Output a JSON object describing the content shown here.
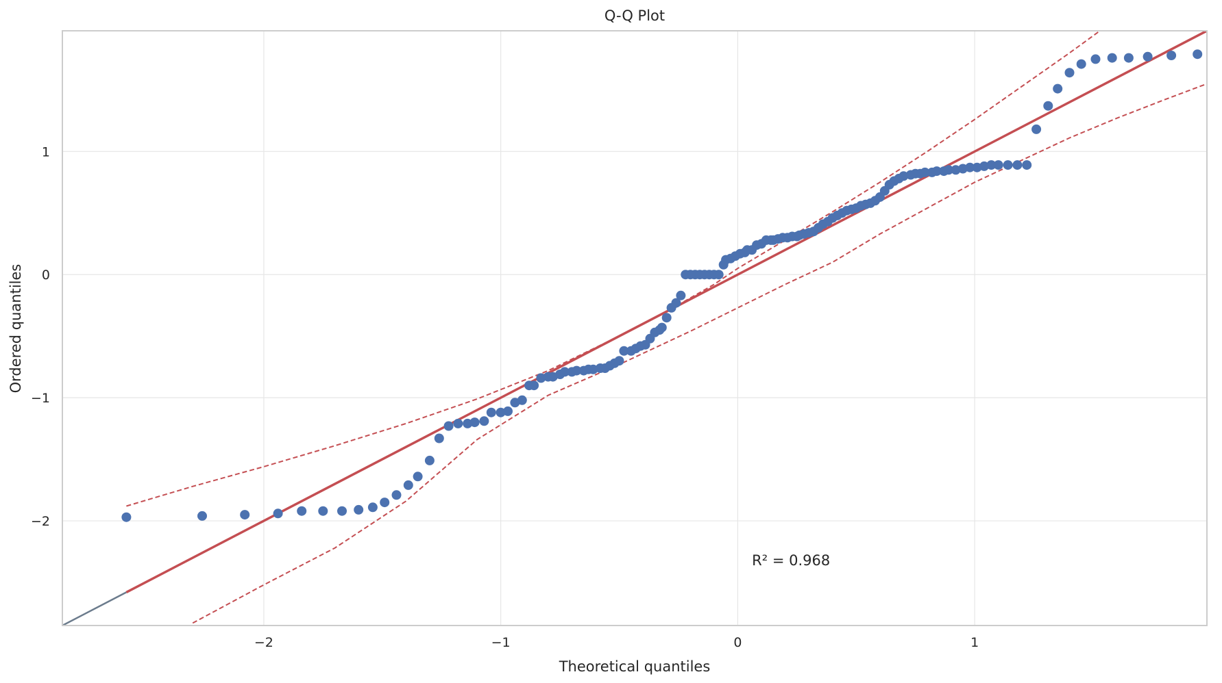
{
  "chart_data": {
    "type": "scatter",
    "title": "Q-Q Plot",
    "xlabel": "Theoretical quantiles",
    "ylabel": "Ordered quantiles",
    "xlim": [
      -2.85,
      1.98
    ],
    "ylim": [
      -2.85,
      1.98
    ],
    "xticks": [
      -2,
      -1,
      0,
      1
    ],
    "yticks": [
      -2,
      -1,
      0,
      1
    ],
    "xtick_labels": [
      "−2",
      "−1",
      "0",
      "1"
    ],
    "ytick_labels": [
      "−2",
      "−1",
      "0",
      "1"
    ],
    "grid": true,
    "annotation": {
      "text": "R² = 0.968",
      "x": 0.06,
      "y": -2.36
    },
    "colors": {
      "points": "#4c72b0",
      "fit_line": "#c44e52",
      "confidence_band": "#c44e52",
      "diagonal": "#6b7b8c",
      "grid": "#e6e6e6",
      "spine": "#cccccc"
    },
    "fit_line": {
      "x": [
        -2.58,
        1.98
      ],
      "y": [
        -2.58,
        1.98
      ]
    },
    "diagonal_line": {
      "x": [
        -2.85,
        -2.58
      ],
      "y": [
        -2.85,
        -2.58
      ]
    },
    "confidence_upper": {
      "x": [
        -2.58,
        -2.3,
        -2.0,
        -1.7,
        -1.4,
        -1.1,
        -0.8,
        -0.5,
        -0.3,
        -0.1,
        0.0,
        0.2,
        0.4,
        0.6,
        0.8,
        1.0,
        1.2,
        1.4,
        1.6
      ],
      "y": [
        -1.88,
        -1.72,
        -1.56,
        -1.39,
        -1.21,
        -1.01,
        -0.78,
        -0.5,
        -0.3,
        -0.08,
        0.05,
        0.28,
        0.51,
        0.75,
        1.0,
        1.26,
        1.53,
        1.8,
        2.08
      ]
    },
    "confidence_lower": {
      "x": [
        -2.3,
        -2.0,
        -1.7,
        -1.4,
        -1.1,
        -0.8,
        -0.5,
        -0.2,
        0.0,
        0.2,
        0.4,
        0.6,
        0.8,
        1.0,
        1.2,
        1.4,
        1.6,
        1.8,
        1.98
      ],
      "y": [
        -2.83,
        -2.52,
        -2.22,
        -1.84,
        -1.34,
        -0.98,
        -0.73,
        -0.46,
        -0.27,
        -0.08,
        0.1,
        0.33,
        0.54,
        0.75,
        0.93,
        1.11,
        1.27,
        1.42,
        1.55
      ]
    },
    "series": [
      {
        "x": [
          -2.58,
          -2.26,
          -2.08,
          -1.94,
          -1.84,
          -1.75,
          -1.67,
          -1.6,
          -1.54,
          -1.49,
          -1.44,
          -1.39,
          -1.35,
          -1.3,
          -1.26,
          -1.22,
          -1.18,
          -1.14,
          -1.11,
          -1.07,
          -1.04,
          -1.0,
          -0.97,
          -0.94,
          -0.91,
          -0.88,
          -0.86,
          -0.83,
          -0.8,
          -0.78,
          -0.75,
          -0.73,
          -0.7,
          -0.68,
          -0.65,
          -0.63,
          -0.61,
          -0.58,
          -0.56,
          -0.54,
          -0.52,
          -0.5,
          -0.48,
          -0.45,
          -0.43,
          -0.41,
          -0.39,
          -0.37,
          -0.35,
          -0.33,
          -0.32,
          -0.3,
          -0.28,
          -0.26,
          -0.24,
          -0.22,
          -0.2,
          -0.18,
          -0.16,
          -0.14,
          -0.12,
          -0.1,
          -0.08,
          -0.06,
          -0.05,
          -0.03,
          -0.01,
          0.01,
          0.03,
          0.04,
          0.06,
          0.08,
          0.1,
          0.12,
          0.14,
          0.15,
          0.17,
          0.19,
          0.21,
          0.23,
          0.25,
          0.26,
          0.28,
          0.3,
          0.32,
          0.34,
          0.36,
          0.38,
          0.4,
          0.42,
          0.44,
          0.46,
          0.48,
          0.5,
          0.52,
          0.54,
          0.56,
          0.58,
          0.6,
          0.62,
          0.64,
          0.66,
          0.68,
          0.7,
          0.73,
          0.75,
          0.77,
          0.79,
          0.82,
          0.84,
          0.87,
          0.89,
          0.92,
          0.95,
          0.98,
          1.01,
          1.04,
          1.07,
          1.1,
          1.14,
          1.18,
          1.22,
          1.26,
          1.31,
          1.35,
          1.4,
          1.45,
          1.51,
          1.58,
          1.65,
          1.73,
          1.83,
          1.94
        ],
        "y": [
          -1.97,
          -1.96,
          -1.95,
          -1.94,
          -1.92,
          -1.92,
          -1.92,
          -1.91,
          -1.89,
          -1.85,
          -1.79,
          -1.71,
          -1.64,
          -1.51,
          -1.33,
          -1.23,
          -1.21,
          -1.21,
          -1.2,
          -1.19,
          -1.12,
          -1.12,
          -1.11,
          -1.04,
          -1.02,
          -0.9,
          -0.9,
          -0.84,
          -0.83,
          -0.83,
          -0.81,
          -0.79,
          -0.79,
          -0.78,
          -0.78,
          -0.77,
          -0.77,
          -0.76,
          -0.76,
          -0.74,
          -0.72,
          -0.7,
          -0.62,
          -0.62,
          -0.6,
          -0.58,
          -0.57,
          -0.52,
          -0.47,
          -0.45,
          -0.43,
          -0.35,
          -0.27,
          -0.23,
          -0.17,
          0.0,
          0.0,
          0.0,
          0.0,
          0.0,
          0.0,
          0.0,
          0.0,
          0.08,
          0.12,
          0.13,
          0.15,
          0.17,
          0.18,
          0.2,
          0.2,
          0.24,
          0.25,
          0.28,
          0.28,
          0.28,
          0.29,
          0.3,
          0.3,
          0.31,
          0.31,
          0.32,
          0.33,
          0.34,
          0.35,
          0.38,
          0.41,
          0.43,
          0.46,
          0.48,
          0.5,
          0.52,
          0.53,
          0.54,
          0.56,
          0.57,
          0.58,
          0.6,
          0.63,
          0.68,
          0.73,
          0.76,
          0.78,
          0.8,
          0.81,
          0.82,
          0.82,
          0.83,
          0.83,
          0.84,
          0.84,
          0.85,
          0.85,
          0.86,
          0.87,
          0.87,
          0.88,
          0.89,
          0.89,
          0.89,
          0.89,
          0.89,
          1.18,
          1.37,
          1.51,
          1.64,
          1.71,
          1.75,
          1.76,
          1.76,
          1.77,
          1.78,
          1.79
        ]
      }
    ]
  }
}
